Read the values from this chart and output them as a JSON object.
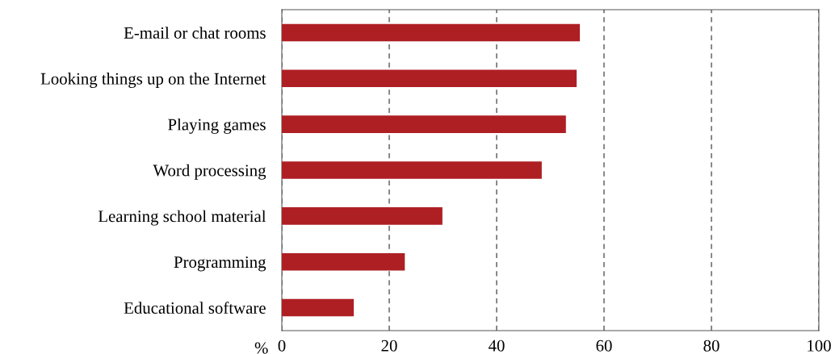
{
  "chart_data": {
    "type": "bar",
    "orientation": "horizontal",
    "xlabel": "%",
    "categories": [
      "E-mail or chat rooms",
      "Looking things up on the Internet",
      "Playing games",
      "Word processing",
      "Learning school material",
      "Programming",
      "Educational software"
    ],
    "values": [
      55.5,
      54.9,
      52.9,
      48.4,
      29.9,
      22.9,
      13.4
    ],
    "color": "#ae1f24",
    "xlim": [
      0,
      100
    ],
    "xticks": [
      0,
      20,
      40,
      60,
      80,
      100
    ],
    "grid": "x",
    "line_style": "dashed"
  }
}
